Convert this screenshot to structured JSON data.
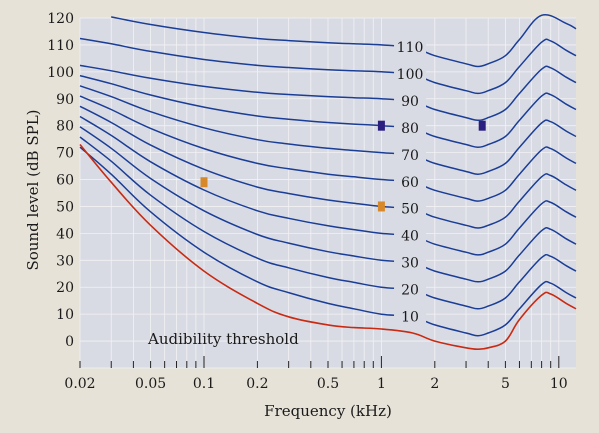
{
  "chart_data": {
    "type": "line",
    "title": "",
    "xlabel": "Frequency (kHz)",
    "ylabel": "Sound level (dB SPL)",
    "xscale": "log",
    "xlim": [
      0.02,
      12.5
    ],
    "ylim": [
      -10,
      120
    ],
    "xtick_labels": [
      "0.02",
      "0.05",
      "0.1",
      "0.2",
      "0.5",
      "1",
      "2",
      "5",
      "10"
    ],
    "ytick_labels": [
      "0",
      "10",
      "20",
      "30",
      "40",
      "50",
      "60",
      "70",
      "80",
      "90",
      "100",
      "110",
      "120"
    ],
    "grid": true,
    "colors": {
      "plot_background": "#d9dbe4",
      "grid": "#f2f2f4",
      "curves": "#1a3d96",
      "threshold": "#c82a12",
      "marker_blue": "#2a1e80",
      "marker_orange": "#d7882a",
      "outer_background": "#e6e2d8"
    },
    "threshold_curve": {
      "label": "Audibility threshold",
      "points": [
        [
          0.02,
          73
        ],
        [
          0.03,
          59
        ],
        [
          0.05,
          43
        ],
        [
          0.1,
          26
        ],
        [
          0.2,
          14
        ],
        [
          0.3,
          9
        ],
        [
          0.5,
          6
        ],
        [
          0.7,
          5
        ],
        [
          1,
          4.5
        ],
        [
          1.5,
          3
        ],
        [
          2,
          0
        ],
        [
          3,
          -2.5
        ],
        [
          3.5,
          -3
        ],
        [
          4,
          -2.5
        ],
        [
          5,
          0
        ],
        [
          6,
          8
        ],
        [
          8,
          17
        ],
        [
          9,
          17.5
        ],
        [
          11,
          14
        ],
        [
          12.5,
          12
        ]
      ]
    },
    "loudness_curves": [
      {
        "label": "10",
        "phon": 10
      },
      {
        "label": "20",
        "phon": 20
      },
      {
        "label": "30",
        "phon": 30
      },
      {
        "label": "40",
        "phon": 40
      },
      {
        "label": "50",
        "phon": 50
      },
      {
        "label": "60",
        "phon": 60
      },
      {
        "label": "70",
        "phon": 70
      },
      {
        "label": "80",
        "phon": 80
      },
      {
        "label": "90",
        "phon": 90
      },
      {
        "label": "100",
        "phon": 100
      },
      {
        "label": "110",
        "phon": 110
      }
    ],
    "markers": [
      {
        "x": 0.1,
        "y": 59,
        "color": "orange"
      },
      {
        "x": 1,
        "y": 50,
        "color": "orange"
      },
      {
        "x": 1,
        "y": 80,
        "color": "blue"
      },
      {
        "x": 3.7,
        "y": 80,
        "color": "blue"
      }
    ]
  }
}
